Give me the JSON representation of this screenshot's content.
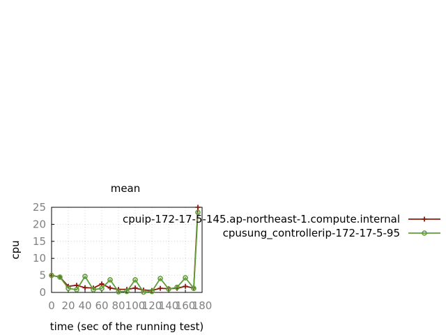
{
  "chart_data": {
    "type": "line",
    "title": "mean",
    "xlabel": "time (sec of the running test)",
    "ylabel": "cpu",
    "xlim": [
      0,
      180
    ],
    "ylim": [
      0,
      25
    ],
    "x_ticks": [
      "0",
      "20",
      "40",
      "60",
      "80",
      "100",
      "120",
      "140",
      "160",
      "180"
    ],
    "y_ticks": [
      "0",
      "5",
      "10",
      "15",
      "20",
      "25"
    ],
    "grid": true,
    "legend_position": "right",
    "series": [
      {
        "name": "cpuip-172-17-5-145.ap-northeast-1.compute.internal",
        "color": "#8b1a0e",
        "marker": "plus",
        "x": [
          0,
          10,
          20,
          30,
          40,
          50,
          60,
          70,
          80,
          90,
          100,
          110,
          120,
          130,
          140,
          150,
          160,
          170,
          175
        ],
        "y": [
          5,
          4.5,
          1.8,
          2.1,
          1.4,
          1.3,
          2.5,
          1.3,
          0.9,
          0.9,
          1.3,
          0.7,
          0.6,
          1.2,
          1.1,
          1.2,
          1.8,
          1.3,
          25
        ]
      },
      {
        "name": "cpusung_controllerip-172-17-5-95",
        "color": "#5e9c36",
        "marker": "circle",
        "x": [
          0,
          10,
          20,
          30,
          40,
          50,
          60,
          70,
          80,
          90,
          100,
          110,
          120,
          130,
          140,
          150,
          160,
          170,
          175
        ],
        "y": [
          5,
          4.5,
          1.2,
          0.8,
          4.7,
          0.8,
          1.2,
          3.7,
          0.2,
          0.3,
          3.7,
          0.1,
          0.3,
          4.1,
          1.0,
          1.5,
          4.3,
          1.2,
          23.5
        ]
      }
    ]
  }
}
